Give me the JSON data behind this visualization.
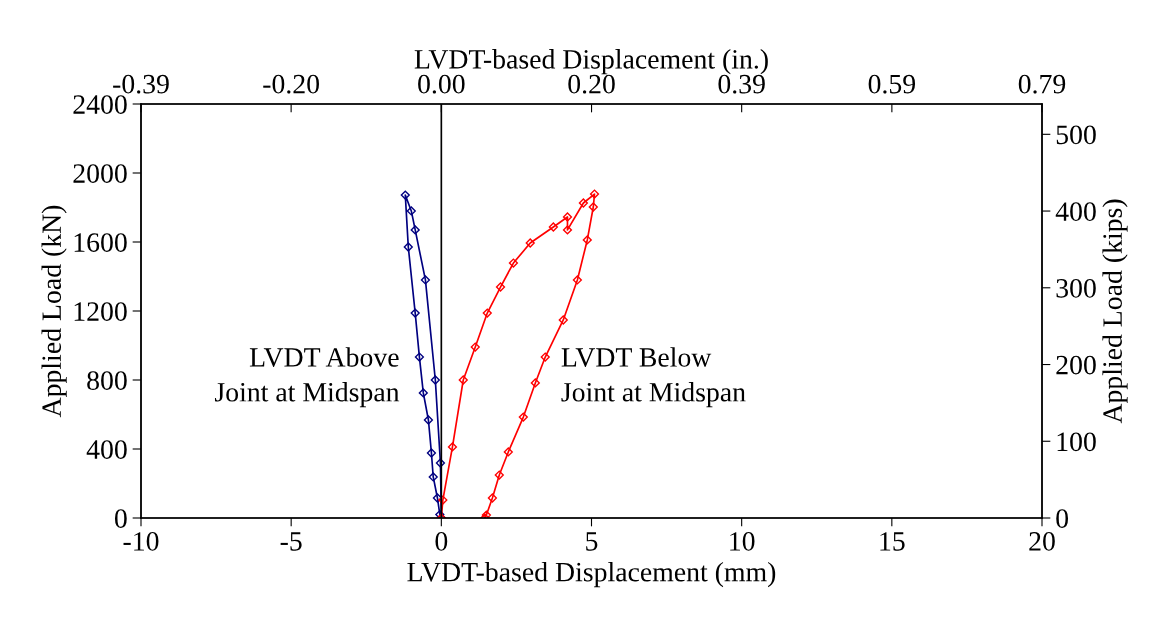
{
  "chart_data": {
    "type": "line",
    "xlabel": "LVDT-based Displacement (mm)",
    "ylabel": "Applied Load (kN)",
    "y2label": "Applied Load (kips)",
    "x2label": "LVDT-based Displacement (in.)",
    "xlim": [
      -10,
      20
    ],
    "xticks": [
      -10,
      -5,
      0,
      5,
      10,
      15,
      20
    ],
    "ylim": [
      0,
      2400
    ],
    "yticks": [
      0,
      400,
      800,
      1200,
      1600,
      2000,
      2400
    ],
    "y2lim": [
      0,
      539.5
    ],
    "y2ticks": [
      0,
      100,
      200,
      300,
      400,
      500
    ],
    "x2lim": [
      -0.3937,
      0.7874
    ],
    "x2ticks": [
      {
        "value": -0.3937,
        "label": "-0.39"
      },
      {
        "value": -0.1969,
        "label": "-0.20"
      },
      {
        "value": 0,
        "label": "0.00"
      },
      {
        "value": 0.1969,
        "label": "0.20"
      },
      {
        "value": 0.3937,
        "label": "0.39"
      },
      {
        "value": 0.5906,
        "label": "0.59"
      },
      {
        "value": 0.7874,
        "label": "0.79"
      }
    ],
    "marker": "diamond",
    "line_style": "solid",
    "grid": false,
    "legend": false,
    "ref_lines": [
      {
        "axis": "x",
        "value": 0,
        "color": "#000000"
      }
    ],
    "series": [
      {
        "name": "LVDT Above\nJoint at Midspan",
        "color": "#000080",
        "x": [
          0,
          -0.03,
          -0.2,
          -0.53,
          -0.87,
          -1.0,
          -1.2,
          -1.1,
          -0.87,
          -0.73,
          -0.6,
          -0.43,
          -0.33,
          -0.27,
          -0.13,
          -0.05
        ],
        "values": [
          0,
          319,
          800,
          1380,
          1670,
          1780,
          1872,
          1571,
          1188,
          933,
          725,
          568,
          377,
          238,
          116,
          20
        ]
      },
      {
        "name": "LVDT Below\nJoint at Midspan",
        "color": "#ff0000",
        "x": [
          0,
          0.05,
          0.37,
          0.73,
          1.13,
          1.53,
          1.97,
          2.4,
          2.96,
          3.73,
          4.2,
          4.2,
          4.73,
          5.1,
          5.06,
          4.86,
          4.53,
          4.06,
          3.46,
          3.13,
          2.73,
          2.23,
          1.93,
          1.7,
          1.5,
          1.45
        ],
        "values": [
          0,
          104,
          412,
          800,
          991,
          1188,
          1339,
          1478,
          1594,
          1687,
          1745,
          1670,
          1826,
          1878,
          1803,
          1612,
          1380,
          1148,
          933,
          783,
          585,
          383,
          249,
          116,
          17,
          0
        ]
      }
    ]
  }
}
